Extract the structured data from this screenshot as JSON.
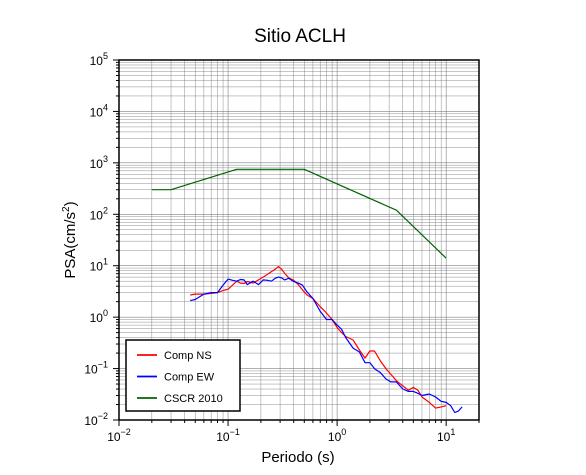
{
  "chart_data": {
    "type": "line",
    "title": "Sitio ACLH",
    "xlabel": "Periodo (s)",
    "ylabel": "PSA(cm/s",
    "ylabel_sup": "2",
    "ylabel_end": ")",
    "x_scale": "log",
    "y_scale": "log",
    "xlim": [
      0.01,
      20
    ],
    "ylim": [
      0.01,
      100000
    ],
    "grid": true,
    "legend_position": "bottom-left",
    "x_ticks": [
      {
        "base": "10",
        "exp": "−2"
      },
      {
        "base": "10",
        "exp": "−1"
      },
      {
        "base": "10",
        "exp": "0"
      },
      {
        "base": "10",
        "exp": "1"
      }
    ],
    "y_ticks": [
      {
        "base": "10",
        "exp": "−2"
      },
      {
        "base": "10",
        "exp": "−1"
      },
      {
        "base": "10",
        "exp": "0"
      },
      {
        "base": "10",
        "exp": "1"
      },
      {
        "base": "10",
        "exp": "2"
      },
      {
        "base": "10",
        "exp": "3"
      },
      {
        "base": "10",
        "exp": "4"
      },
      {
        "base": "10",
        "exp": "5"
      }
    ],
    "series": [
      {
        "name": "Comp NS",
        "color": "#ff0000",
        "x": [
          0.045,
          0.05,
          0.06,
          0.07,
          0.08,
          0.09,
          0.1,
          0.11,
          0.12,
          0.13,
          0.14,
          0.15,
          0.17,
          0.19,
          0.21,
          0.23,
          0.25,
          0.27,
          0.29,
          0.31,
          0.33,
          0.36,
          0.4,
          0.44,
          0.48,
          0.53,
          0.6,
          0.7,
          0.8,
          0.9,
          1.0,
          1.1,
          1.2,
          1.4,
          1.6,
          1.8,
          2.0,
          2.2,
          2.5,
          2.8,
          3.1,
          3.5,
          4.0,
          4.5,
          5.0,
          5.5,
          6.0,
          7.0,
          8.0,
          9.0,
          10.0
        ],
        "y": [
          2.7,
          2.8,
          2.8,
          2.9,
          3.0,
          3.3,
          3.5,
          4.2,
          5.0,
          4.6,
          4.5,
          4.9,
          4.6,
          5.3,
          6.0,
          6.8,
          7.7,
          8.5,
          9.6,
          8.5,
          7.2,
          5.8,
          5.2,
          4.3,
          3.4,
          2.7,
          2.3,
          1.6,
          1.2,
          0.9,
          0.63,
          0.5,
          0.42,
          0.36,
          0.23,
          0.16,
          0.22,
          0.22,
          0.14,
          0.1,
          0.078,
          0.058,
          0.046,
          0.038,
          0.043,
          0.038,
          0.028,
          0.022,
          0.017,
          0.018,
          0.019
        ]
      },
      {
        "name": "Comp EW",
        "color": "#0000ff",
        "x": [
          0.045,
          0.05,
          0.06,
          0.07,
          0.08,
          0.09,
          0.1,
          0.11,
          0.12,
          0.13,
          0.14,
          0.15,
          0.17,
          0.19,
          0.21,
          0.23,
          0.25,
          0.27,
          0.29,
          0.31,
          0.33,
          0.36,
          0.4,
          0.44,
          0.48,
          0.53,
          0.6,
          0.7,
          0.8,
          0.9,
          1.0,
          1.1,
          1.2,
          1.4,
          1.6,
          1.8,
          2.0,
          2.2,
          2.5,
          2.8,
          3.1,
          3.5,
          4.0,
          4.5,
          5.0,
          5.5,
          6.0,
          7.0,
          8.0,
          9.0,
          10.0,
          11.0,
          12.0,
          13.0,
          14.0
        ],
        "y": [
          2.1,
          2.2,
          2.8,
          3.0,
          3.0,
          4.2,
          5.5,
          5.2,
          5.0,
          5.4,
          5.3,
          4.3,
          5.0,
          4.3,
          5.3,
          5.2,
          5.0,
          5.7,
          6.0,
          5.8,
          5.3,
          5.7,
          4.9,
          4.6,
          4.2,
          3.1,
          2.3,
          1.3,
          0.9,
          0.9,
          0.7,
          0.58,
          0.4,
          0.25,
          0.21,
          0.13,
          0.13,
          0.1,
          0.083,
          0.063,
          0.055,
          0.055,
          0.04,
          0.036,
          0.036,
          0.033,
          0.03,
          0.032,
          0.028,
          0.023,
          0.022,
          0.019,
          0.014,
          0.015,
          0.018
        ]
      },
      {
        "name": "CSCR 2010",
        "color": "#006400",
        "x": [
          0.02,
          0.03,
          0.12,
          0.5,
          3.5,
          10.0
        ],
        "y": [
          300,
          300,
          750,
          750,
          120,
          14
        ]
      }
    ]
  }
}
